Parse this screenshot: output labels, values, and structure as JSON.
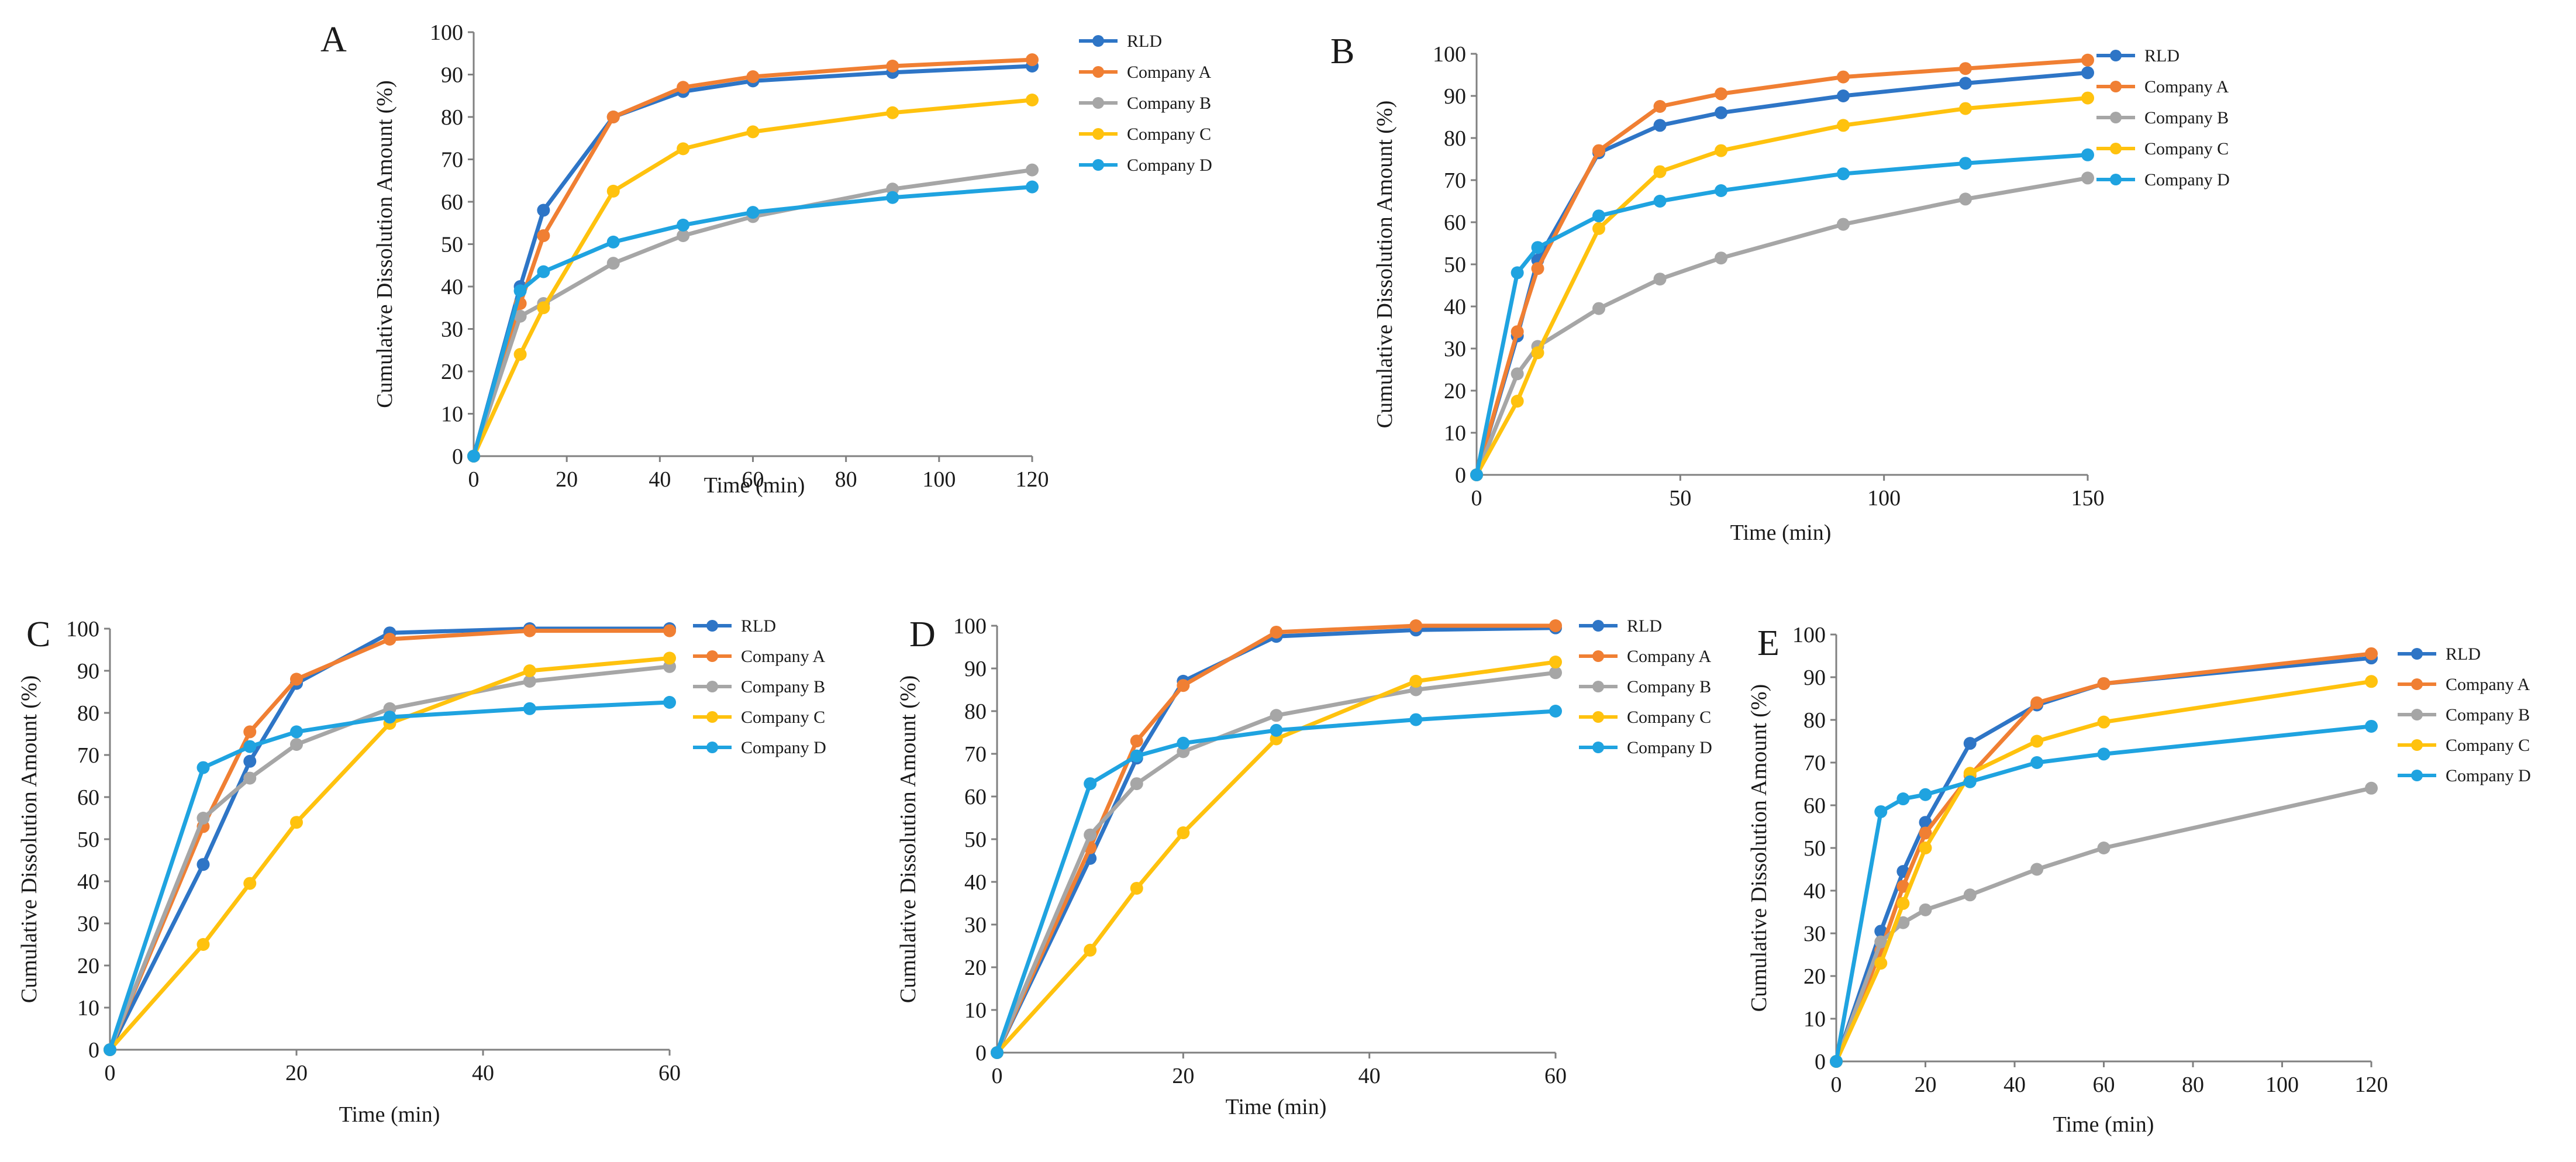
{
  "colors": {
    "RLD": "#2E75C6",
    "Company A": "#F07F33",
    "Company B": "#A6A6A6",
    "Company C": "#FFC20E",
    "Company D": "#1FA3E0",
    "axis": "#808080",
    "text": "#1a1a1a"
  },
  "chart_data": [
    {
      "panel": "A",
      "type": "line",
      "xlabel": "Time (min)",
      "ylabel": "Cumulative Dissolution Amount (%)",
      "xlim": [
        0,
        120
      ],
      "ylim": [
        0,
        100
      ],
      "xticks": [
        0,
        20,
        40,
        60,
        80,
        100,
        120
      ],
      "yticks": [
        0,
        10,
        20,
        30,
        40,
        50,
        60,
        70,
        80,
        90,
        100
      ],
      "x": [
        0,
        10,
        15,
        30,
        45,
        60,
        90,
        120
      ],
      "legend_position": "top-right",
      "series": [
        {
          "name": "RLD",
          "values": [
            0,
            40,
            58,
            80,
            86,
            88.5,
            90.5,
            92
          ]
        },
        {
          "name": "Company A",
          "values": [
            0,
            36,
            52,
            80,
            87,
            89.5,
            92,
            93.5
          ]
        },
        {
          "name": "Company B",
          "values": [
            0,
            33,
            36,
            45.5,
            52,
            56.5,
            63,
            67.5
          ]
        },
        {
          "name": "Company C",
          "values": [
            0,
            24,
            35,
            62.5,
            72.5,
            76.5,
            81,
            84
          ]
        },
        {
          "name": "Company D",
          "values": [
            0,
            39,
            43.5,
            50.5,
            54.5,
            57.5,
            61,
            63.5
          ]
        }
      ]
    },
    {
      "panel": "B",
      "type": "line",
      "xlabel": "Time (min)",
      "ylabel": "Cumulative Dissolution Amount (%)",
      "xlim": [
        0,
        150
      ],
      "ylim": [
        0,
        100
      ],
      "xticks": [
        0,
        50,
        100,
        150
      ],
      "yticks": [
        0,
        10,
        20,
        30,
        40,
        50,
        60,
        70,
        80,
        90,
        100
      ],
      "x": [
        0,
        10,
        15,
        30,
        45,
        60,
        90,
        120,
        150
      ],
      "legend_position": "top-right",
      "series": [
        {
          "name": "RLD",
          "values": [
            0,
            33,
            51,
            76.5,
            83,
            86,
            90,
            93,
            95.5
          ]
        },
        {
          "name": "Company A",
          "values": [
            0,
            34,
            49,
            77,
            87.5,
            90.5,
            94.5,
            96.5,
            98.5
          ]
        },
        {
          "name": "Company B",
          "values": [
            0,
            24,
            30.5,
            39.5,
            46.5,
            51.5,
            59.5,
            65.5,
            70.5
          ]
        },
        {
          "name": "Company C",
          "values": [
            0,
            17.5,
            29,
            58.5,
            72,
            77,
            83,
            87,
            89.5
          ]
        },
        {
          "name": "Company D",
          "values": [
            0,
            48,
            54,
            61.5,
            65,
            67.5,
            71.5,
            74,
            76
          ]
        }
      ]
    },
    {
      "panel": "C",
      "type": "line",
      "xlabel": "Time (min)",
      "ylabel": "Cumulative Dissolution Amount (%)",
      "xlim": [
        0,
        60
      ],
      "ylim": [
        0,
        100
      ],
      "xticks": [
        0,
        20,
        40,
        60
      ],
      "yticks": [
        0,
        10,
        20,
        30,
        40,
        50,
        60,
        70,
        80,
        90,
        100
      ],
      "x": [
        0,
        10,
        15,
        20,
        30,
        45,
        60
      ],
      "legend_position": "top-right",
      "series": [
        {
          "name": "RLD",
          "values": [
            0,
            44,
            68.5,
            87,
            99,
            100,
            100
          ]
        },
        {
          "name": "Company A",
          "values": [
            0,
            53,
            75.5,
            88,
            97.5,
            99.5,
            99.5
          ]
        },
        {
          "name": "Company B",
          "values": [
            0,
            55,
            64.5,
            72.5,
            81,
            87.5,
            91
          ]
        },
        {
          "name": "Company C",
          "values": [
            0,
            25,
            39.5,
            54,
            77.5,
            90,
            93
          ]
        },
        {
          "name": "Company D",
          "values": [
            0,
            67,
            72,
            75.5,
            79,
            81,
            82.5
          ]
        }
      ]
    },
    {
      "panel": "D",
      "type": "line",
      "xlabel": "Time (min)",
      "ylabel": "Cumulative Dissolution Amount (%)",
      "xlim": [
        0,
        60
      ],
      "ylim": [
        0,
        100
      ],
      "xticks": [
        0,
        20,
        40,
        60
      ],
      "yticks": [
        0,
        10,
        20,
        30,
        40,
        50,
        60,
        70,
        80,
        90,
        100
      ],
      "x": [
        0,
        10,
        15,
        20,
        30,
        45,
        60
      ],
      "legend_position": "top-right",
      "series": [
        {
          "name": "RLD",
          "values": [
            0,
            45.5,
            69,
            87,
            97.5,
            99,
            99.5
          ]
        },
        {
          "name": "Company A",
          "values": [
            0,
            48,
            73,
            86,
            98.5,
            100,
            100
          ]
        },
        {
          "name": "Company B",
          "values": [
            0,
            51,
            63,
            70.5,
            79,
            85,
            89
          ]
        },
        {
          "name": "Company C",
          "values": [
            0,
            24,
            38.5,
            51.5,
            73.5,
            87,
            91.5
          ]
        },
        {
          "name": "Company D",
          "values": [
            0,
            63,
            69.5,
            72.5,
            75.5,
            78,
            80
          ]
        }
      ]
    },
    {
      "panel": "E",
      "type": "line",
      "xlabel": "Time (min)",
      "ylabel": "Cumulative Dissolution Amount (%)",
      "xlim": [
        0,
        120
      ],
      "ylim": [
        0,
        100
      ],
      "xticks": [
        0,
        20,
        40,
        60,
        80,
        100,
        120
      ],
      "yticks": [
        0,
        10,
        20,
        30,
        40,
        50,
        60,
        70,
        80,
        90,
        100
      ],
      "x": [
        0,
        10,
        15,
        20,
        30,
        45,
        60,
        120
      ],
      "legend_position": "top-right",
      "series": [
        {
          "name": "RLD",
          "values": [
            0,
            30.5,
            44.5,
            56,
            74.5,
            83.5,
            88.5,
            94.5
          ]
        },
        {
          "name": "Company A",
          "values": [
            0,
            26,
            41,
            53.5,
            67,
            84,
            88.5,
            95.5
          ]
        },
        {
          "name": "Company B",
          "values": [
            0,
            28,
            32.5,
            35.5,
            39,
            45,
            50,
            64
          ]
        },
        {
          "name": "Company C",
          "values": [
            0,
            23,
            37,
            50,
            67.5,
            75,
            79.5,
            89
          ]
        },
        {
          "name": "Company D",
          "values": [
            0,
            58.5,
            61.5,
            62.5,
            65.5,
            70,
            72,
            78.5
          ]
        }
      ]
    }
  ]
}
